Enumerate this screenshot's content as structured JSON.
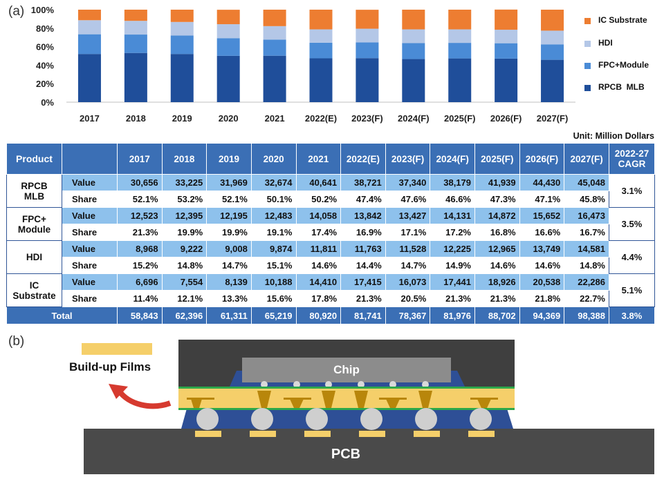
{
  "panel_a_label": "(a)",
  "panel_b_label": "(b)",
  "unit_label": "Unit: Million Dollars",
  "chart_data": {
    "type": "bar",
    "stacked": true,
    "title": "",
    "xlabel": "",
    "ylabel": "",
    "ylim": [
      0,
      100
    ],
    "y_ticks": [
      "0%",
      "20%",
      "40%",
      "60%",
      "80%",
      "100%"
    ],
    "categories": [
      "2017",
      "2018",
      "2019",
      "2020",
      "2021",
      "2022(E)",
      "2023(F)",
      "2024(F)",
      "2025(F)",
      "2026(F)",
      "2027(F)"
    ],
    "series": [
      {
        "name": "RPCB  MLB",
        "color": "#1f4e9a",
        "values": [
          52.1,
          53.2,
          52.1,
          50.1,
          50.2,
          47.4,
          47.6,
          46.6,
          47.3,
          47.1,
          45.8
        ]
      },
      {
        "name": "FPC+Module",
        "color": "#4a8bd6",
        "values": [
          21.3,
          19.9,
          19.9,
          19.1,
          17.4,
          16.9,
          17.1,
          17.2,
          16.8,
          16.6,
          16.7
        ]
      },
      {
        "name": "HDI",
        "color": "#b4c7e7",
        "values": [
          15.2,
          14.8,
          14.7,
          15.1,
          14.6,
          14.4,
          14.7,
          14.9,
          14.6,
          14.6,
          14.8
        ]
      },
      {
        "name": "IC Substrate",
        "color": "#ed7d31",
        "values": [
          11.4,
          12.1,
          13.3,
          15.6,
          17.8,
          21.3,
          20.5,
          21.3,
          21.3,
          21.8,
          22.7
        ]
      }
    ],
    "legend_order": [
      "IC Substrate",
      "HDI",
      "FPC+Module",
      "RPCB  MLB"
    ],
    "legend_position": "right"
  },
  "table": {
    "header_product": "Product",
    "header_blank": "",
    "years": [
      "2017",
      "2018",
      "2019",
      "2020",
      "2021",
      "2022(E)",
      "2023(F)",
      "2024(F)",
      "2025(F)",
      "2026(F)",
      "2027(F)"
    ],
    "header_cagr_line1": "2022-27",
    "header_cagr_line2": "CAGR",
    "rows": [
      {
        "product_line1": "RPCB",
        "product_line2": "MLB",
        "value_label": "Value",
        "share_label": "Share",
        "values": [
          "30,656",
          "33,225",
          "31,969",
          "32,674",
          "40,641",
          "38,721",
          "37,340",
          "38,179",
          "41,939",
          "44,430",
          "45,048"
        ],
        "shares": [
          "52.1%",
          "53.2%",
          "52.1%",
          "50.1%",
          "50.2%",
          "47.4%",
          "47.6%",
          "46.6%",
          "47.3%",
          "47.1%",
          "45.8%"
        ],
        "cagr": "3.1%"
      },
      {
        "product_line1": "FPC+",
        "product_line2": "Module",
        "value_label": "Value",
        "share_label": "Share",
        "values": [
          "12,523",
          "12,395",
          "12,195",
          "12,483",
          "14,058",
          "13,842",
          "13,427",
          "14,131",
          "14,872",
          "15,652",
          "16,473"
        ],
        "shares": [
          "21.3%",
          "19.9%",
          "19.9%",
          "19.1%",
          "17.4%",
          "16.9%",
          "17.1%",
          "17.2%",
          "16.8%",
          "16.6%",
          "16.7%"
        ],
        "cagr": "3.5%"
      },
      {
        "product_line1": "HDI",
        "product_line2": "",
        "value_label": "Value",
        "share_label": "Share",
        "values": [
          "8,968",
          "9,222",
          "9,008",
          "9,874",
          "11,811",
          "11,763",
          "11,528",
          "12,225",
          "12,965",
          "13,749",
          "14,581"
        ],
        "shares": [
          "15.2%",
          "14.8%",
          "14.7%",
          "15.1%",
          "14.6%",
          "14.4%",
          "14.7%",
          "14.9%",
          "14.6%",
          "14.6%",
          "14.8%"
        ],
        "cagr": "4.4%"
      },
      {
        "product_line1": "IC",
        "product_line2": "Substrate",
        "value_label": "Value",
        "share_label": "Share",
        "values": [
          "6,696",
          "7,554",
          "8,139",
          "10,188",
          "14,410",
          "17,415",
          "16,073",
          "17,441",
          "18,926",
          "20,538",
          "22,286"
        ],
        "shares": [
          "11.4%",
          "12.1%",
          "13.3%",
          "15.6%",
          "17.8%",
          "21.3%",
          "20.5%",
          "21.3%",
          "21.3%",
          "21.8%",
          "22.7%"
        ],
        "cagr": "5.1%"
      }
    ],
    "total_label": "Total",
    "totals": [
      "58,843",
      "62,396",
      "61,311",
      "65,219",
      "80,920",
      "81,741",
      "78,367",
      "81,976",
      "88,702",
      "94,369",
      "98,388"
    ],
    "total_cagr": "3.8%"
  },
  "diagram": {
    "buildup_films_label": "Build-up Films",
    "chip_label": "Chip",
    "pcb_label": "PCB",
    "colors": {
      "buildup": "#f5cf6a",
      "chip": "#8c8c8c",
      "mold": "#3f3f3f",
      "pcb": "#4a4a4a",
      "blue": "#2e4f96",
      "green": "#2ea84a",
      "arrow": "#d63a2f",
      "via": "#b8860b"
    }
  }
}
